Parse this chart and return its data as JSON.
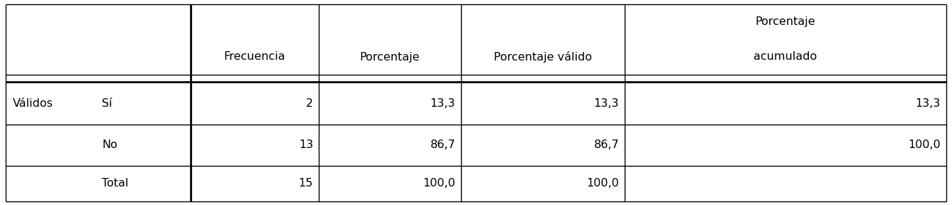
{
  "col_headers_line1": [
    "",
    "",
    "",
    "",
    "",
    "Porcentaje"
  ],
  "col_headers_line2": [
    "",
    "",
    "Frecuencia",
    "Porcentaje",
    "Porcentaje válido",
    "acumulado"
  ],
  "row_label_col1": [
    "Válidos",
    "",
    ""
  ],
  "row_label_col2": [
    "Sí",
    "No",
    "Total"
  ],
  "data_rows": [
    [
      "2",
      "13,3",
      "13,3",
      "13,3"
    ],
    [
      "13",
      "86,7",
      "86,7",
      "100,0"
    ],
    [
      "15",
      "100,0",
      "100,0",
      ""
    ]
  ],
  "bg_color": "#ffffff",
  "text_color": "#000000",
  "font_size": 11.5
}
